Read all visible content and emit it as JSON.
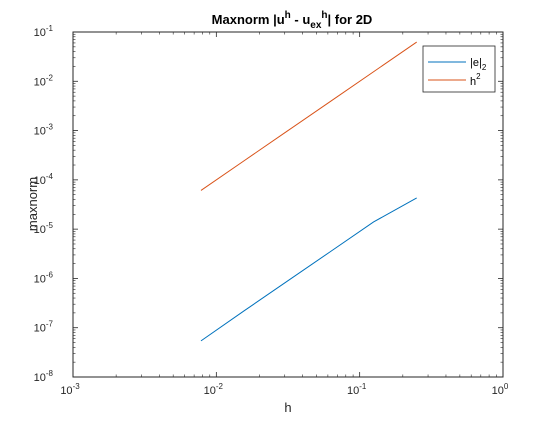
{
  "chart_data": {
    "type": "line",
    "title": {
      "main": "Maxnorm |u",
      "sup1": "h",
      "mid": " - u",
      "sub": "ex",
      "sup2": "h",
      "end": "| for 2D"
    },
    "xlabel": "h",
    "ylabel": "maxnorm",
    "x_scale": "log",
    "y_scale": "log",
    "xlim": [
      0.001,
      1
    ],
    "ylim": [
      1e-08,
      0.1
    ],
    "grid": false,
    "legend_position": "top-right",
    "x_ticks": [
      {
        "value": 0.001,
        "base": "10",
        "exp": "-3"
      },
      {
        "value": 0.01,
        "base": "10",
        "exp": "-2"
      },
      {
        "value": 0.1,
        "base": "10",
        "exp": "-1"
      },
      {
        "value": 1,
        "base": "10",
        "exp": "0"
      }
    ],
    "y_ticks": [
      {
        "value": 1e-08,
        "base": "10",
        "exp": "-8"
      },
      {
        "value": 1e-07,
        "base": "10",
        "exp": "-7"
      },
      {
        "value": 1e-06,
        "base": "10",
        "exp": "-6"
      },
      {
        "value": 1e-05,
        "base": "10",
        "exp": "-5"
      },
      {
        "value": 0.0001,
        "base": "10",
        "exp": "-4"
      },
      {
        "value": 0.001,
        "base": "10",
        "exp": "-3"
      },
      {
        "value": 0.01,
        "base": "10",
        "exp": "-2"
      },
      {
        "value": 0.1,
        "base": "10",
        "exp": "-1"
      }
    ],
    "series": [
      {
        "name": "|e|",
        "name_sub": "2",
        "color": "#0072BD",
        "x": [
          0.0078125,
          0.015625,
          0.03125,
          0.0625,
          0.125,
          0.25
        ],
        "y": [
          5.4e-08,
          2.2e-07,
          8.8e-07,
          3.5e-06,
          1.4e-05,
          4.3e-05
        ]
      },
      {
        "name": "h",
        "name_sup": "2",
        "color": "#D95319",
        "x": [
          0.0078125,
          0.015625,
          0.03125,
          0.0625,
          0.125,
          0.25
        ],
        "y": [
          6.1035e-05,
          0.00024414,
          0.00097656,
          0.0039063,
          0.015625,
          0.0625
        ]
      }
    ]
  }
}
